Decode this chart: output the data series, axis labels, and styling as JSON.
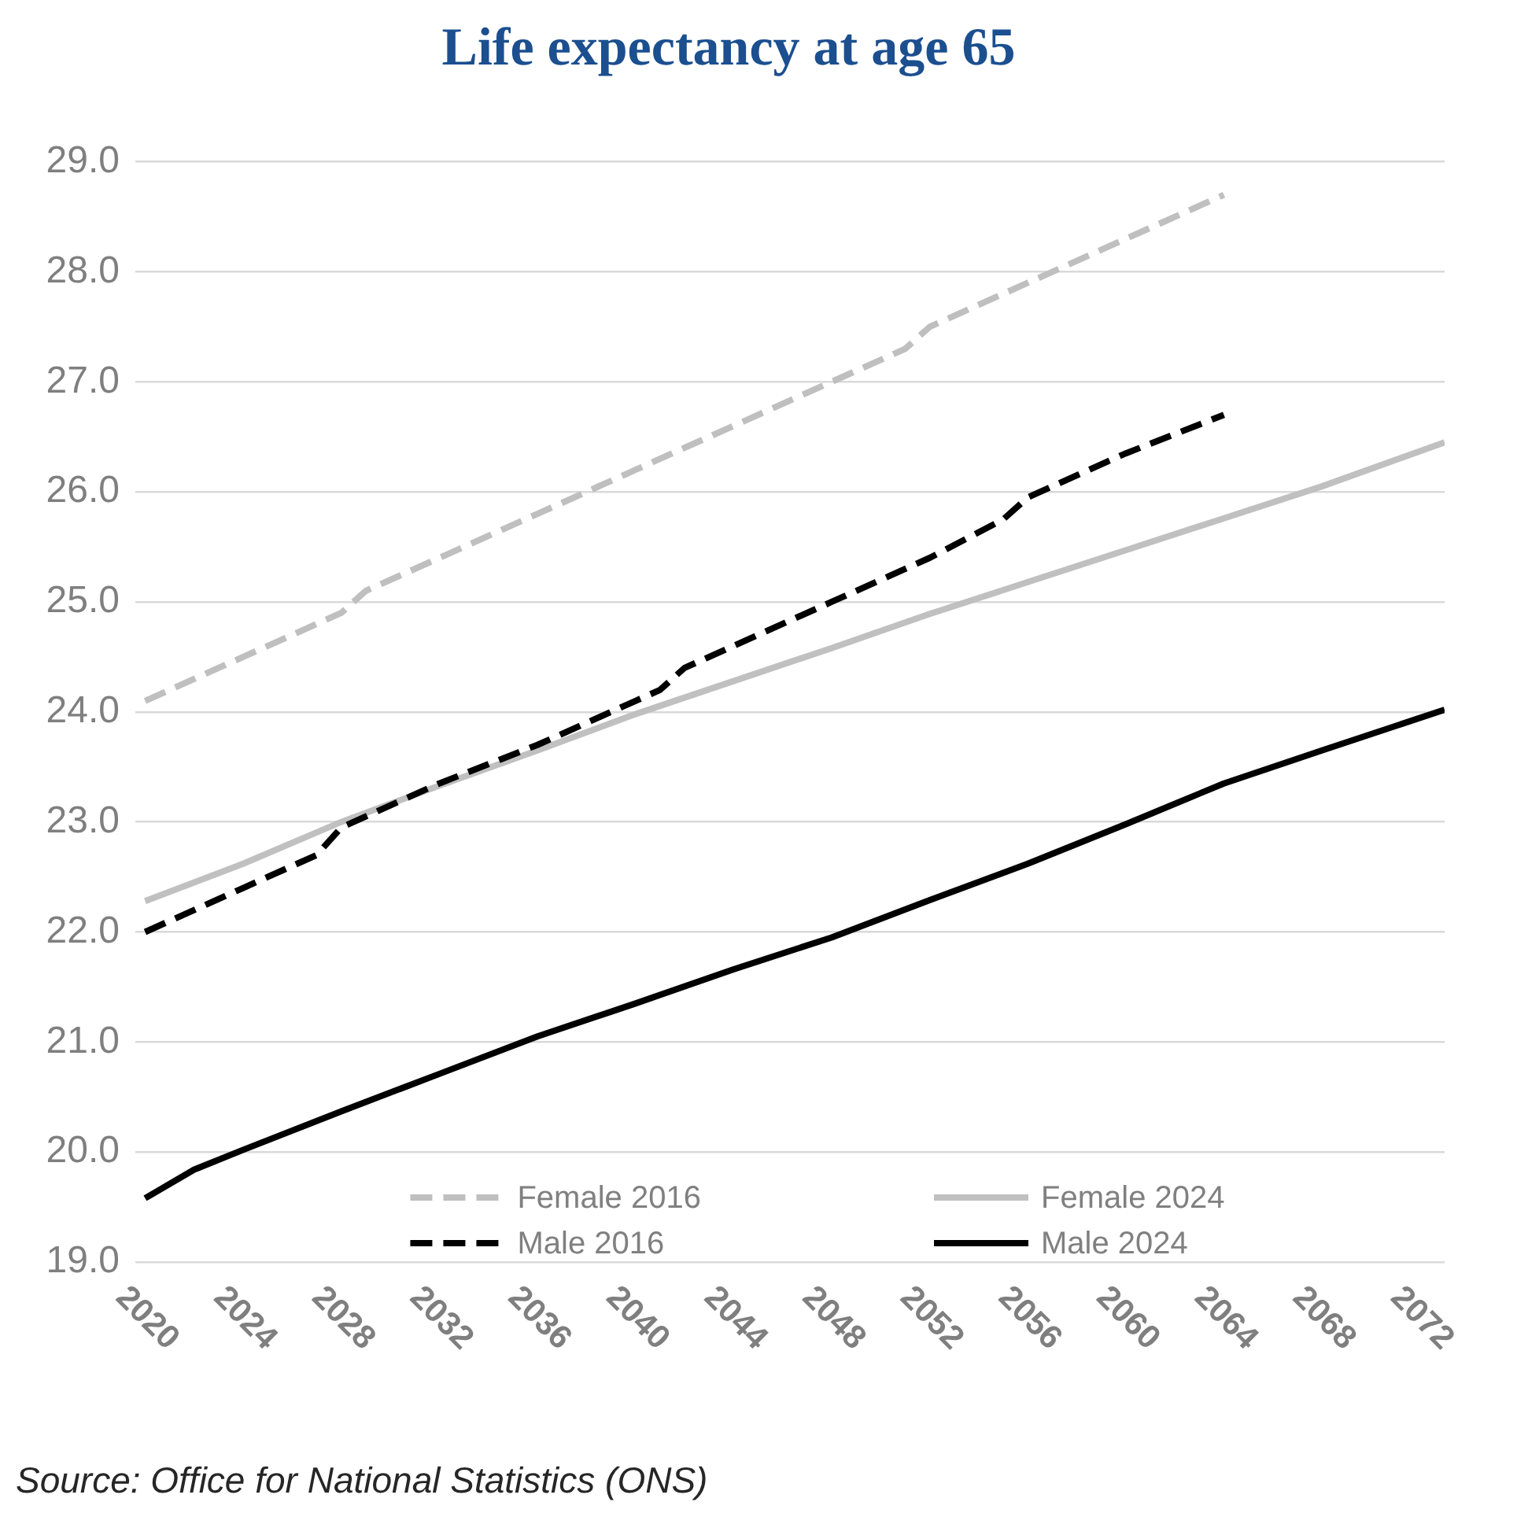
{
  "chart_data": {
    "type": "line",
    "title": "Life expectancy at age 65",
    "annotations": [
      "Source: Office for National Statistics (ONS)"
    ],
    "xlim": [
      2019.6,
      2073
    ],
    "xticks": [
      2020,
      2024,
      2028,
      2032,
      2036,
      2040,
      2044,
      2048,
      2052,
      2056,
      2060,
      2064,
      2068,
      2072
    ],
    "ylim": [
      19,
      29
    ],
    "yticks": [
      {
        "value": 19,
        "label": "19.0"
      },
      {
        "value": 20,
        "label": "20.0"
      },
      {
        "value": 21,
        "label": "21.0"
      },
      {
        "value": 22,
        "label": "22.0"
      },
      {
        "value": 23,
        "label": "23.0"
      },
      {
        "value": 24,
        "label": "24.0"
      },
      {
        "value": 25,
        "label": "25.0"
      },
      {
        "value": 26,
        "label": "26.0"
      },
      {
        "value": 27,
        "label": "27.0"
      },
      {
        "value": 28,
        "label": "28.0"
      },
      {
        "value": 29,
        "label": "29.0"
      }
    ],
    "grid": "y",
    "legend": "bottom",
    "series": [
      {
        "name": "Female 2016",
        "color": "#bfbfbf",
        "line_style": "dashed",
        "x": [
          2020,
          2024,
          2028,
          2029,
          2032,
          2036,
          2040,
          2044,
          2048,
          2051,
          2052,
          2056,
          2060,
          2064
        ],
        "values": [
          24.1,
          24.5,
          24.9,
          25.1,
          25.4,
          25.8,
          26.2,
          26.6,
          27.0,
          27.3,
          27.5,
          27.9,
          28.3,
          28.7
        ]
      },
      {
        "name": "Female 2024",
        "color": "#c0c0c0",
        "line_style": "solid",
        "x": [
          2020,
          2022,
          2024,
          2028,
          2032,
          2036,
          2040,
          2044,
          2048,
          2052,
          2056,
          2060,
          2064,
          2068,
          2073
        ],
        "values": [
          22.28,
          22.45,
          22.62,
          23.0,
          23.33,
          23.65,
          23.98,
          24.28,
          24.58,
          24.89,
          25.18,
          25.47,
          25.76,
          26.05,
          26.45
        ]
      },
      {
        "name": "Male 2016",
        "color": "#000000",
        "line_style": "dashed",
        "x": [
          2020,
          2024,
          2027,
          2028,
          2032,
          2036,
          2040,
          2041,
          2042,
          2044,
          2048,
          2052,
          2055,
          2056,
          2060,
          2064
        ],
        "values": [
          22.0,
          22.4,
          22.7,
          22.95,
          23.35,
          23.7,
          24.1,
          24.2,
          24.4,
          24.6,
          25.0,
          25.4,
          25.75,
          25.95,
          26.35,
          26.7
        ]
      },
      {
        "name": "Male 2024",
        "color": "#000000",
        "line_style": "solid",
        "x": [
          2020,
          2022,
          2024,
          2028,
          2032,
          2036,
          2040,
          2044,
          2048,
          2052,
          2056,
          2060,
          2064,
          2068,
          2073
        ],
        "values": [
          19.58,
          19.84,
          20.02,
          20.37,
          20.71,
          21.05,
          21.35,
          21.66,
          21.95,
          22.29,
          22.62,
          22.98,
          23.35,
          23.65,
          24.02
        ]
      }
    ]
  }
}
